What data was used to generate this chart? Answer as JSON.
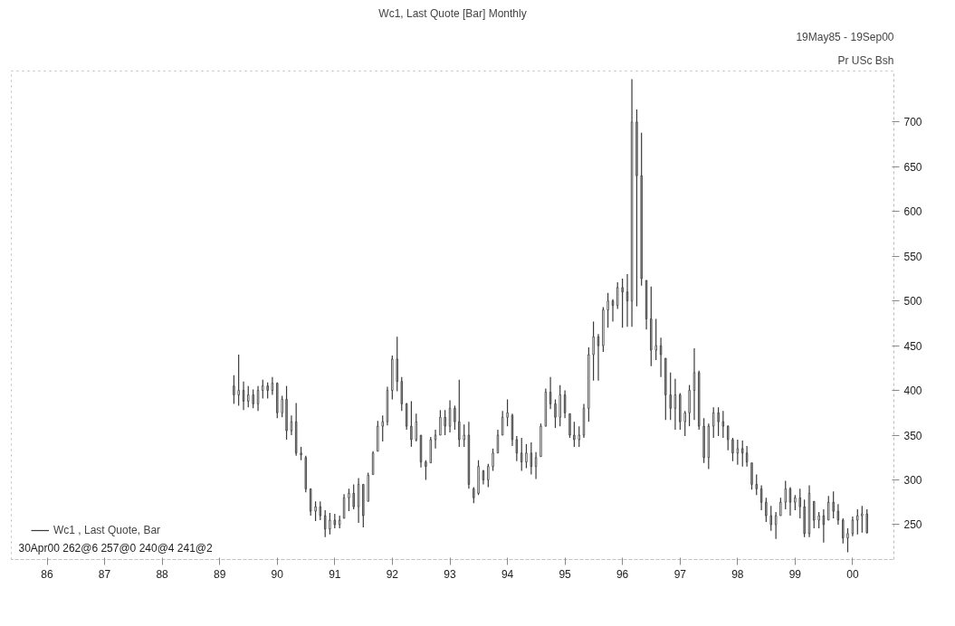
{
  "chart_data": {
    "type": "candlestick",
    "title": "Wc1, Last Quote [Bar] Monthly",
    "subtitle": "19May85 - 19Sep00",
    "ylabel": "Pr USc Bsh",
    "annotations": [
      "30Apr00 262@6 257@0 240@4 241@2"
    ],
    "legend": "bottom left",
    "grid": false,
    "xlim": [
      "1985-05-19",
      "2000-09-19"
    ],
    "xticks": [
      {
        "value": "1986-01",
        "label": "86"
      },
      {
        "value": "1987-01",
        "label": "87"
      },
      {
        "value": "1988-01",
        "label": "88"
      },
      {
        "value": "1989-01",
        "label": "89"
      },
      {
        "value": "1990-01",
        "label": "90"
      },
      {
        "value": "1991-01",
        "label": "91"
      },
      {
        "value": "1992-01",
        "label": "92"
      },
      {
        "value": "1993-01",
        "label": "93"
      },
      {
        "value": "1994-01",
        "label": "94"
      },
      {
        "value": "1995-01",
        "label": "95"
      },
      {
        "value": "1996-01",
        "label": "96"
      },
      {
        "value": "1997-01",
        "label": "97"
      },
      {
        "value": "1998-01",
        "label": "98"
      },
      {
        "value": "1999-01",
        "label": "99"
      },
      {
        "value": "2000-01",
        "label": "00"
      }
    ],
    "ylim": [
      211,
      757
    ],
    "yticks": [
      250,
      300,
      350,
      400,
      450,
      500,
      550,
      600,
      650,
      700
    ],
    "x": [
      "1989-04",
      "1989-05",
      "1989-06",
      "1989-07",
      "1989-08",
      "1989-09",
      "1989-10",
      "1989-11",
      "1989-12",
      "1990-01",
      "1990-02",
      "1990-03",
      "1990-04",
      "1990-05",
      "1990-06",
      "1990-07",
      "1990-08",
      "1990-09",
      "1990-10",
      "1990-11",
      "1990-12",
      "1991-01",
      "1991-02",
      "1991-03",
      "1991-04",
      "1991-05",
      "1991-06",
      "1991-07",
      "1991-08",
      "1991-09",
      "1991-10",
      "1991-11",
      "1991-12",
      "1992-01",
      "1992-02",
      "1992-03",
      "1992-04",
      "1992-05",
      "1992-06",
      "1992-07",
      "1992-08",
      "1992-09",
      "1992-10",
      "1992-11",
      "1992-12",
      "1993-01",
      "1993-02",
      "1993-03",
      "1993-04",
      "1993-05",
      "1993-06",
      "1993-07",
      "1993-08",
      "1993-09",
      "1993-10",
      "1993-11",
      "1993-12",
      "1994-01",
      "1994-02",
      "1994-03",
      "1994-04",
      "1994-05",
      "1994-06",
      "1994-07",
      "1994-08",
      "1994-09",
      "1994-10",
      "1994-11",
      "1994-12",
      "1995-01",
      "1995-02",
      "1995-03",
      "1995-04",
      "1995-05",
      "1995-06",
      "1995-07",
      "1995-08",
      "1995-09",
      "1995-10",
      "1995-11",
      "1995-12",
      "1996-01",
      "1996-02",
      "1996-03",
      "1996-04",
      "1996-05",
      "1996-06",
      "1996-07",
      "1996-08",
      "1996-09",
      "1996-10",
      "1996-11",
      "1996-12",
      "1997-01",
      "1997-02",
      "1997-03",
      "1997-04",
      "1997-05",
      "1997-06",
      "1997-07",
      "1997-08",
      "1997-09",
      "1997-10",
      "1997-11",
      "1997-12",
      "1998-01",
      "1998-02",
      "1998-03",
      "1998-04",
      "1998-05",
      "1998-06",
      "1998-07",
      "1998-08",
      "1998-09",
      "1998-10",
      "1998-11",
      "1998-12",
      "1999-01",
      "1999-02",
      "1999-03",
      "1999-04",
      "1999-05",
      "1999-06",
      "1999-07",
      "1999-08",
      "1999-09",
      "1999-10",
      "1999-11",
      "1999-12",
      "2000-01",
      "2000-02",
      "2000-03",
      "2000-04"
    ],
    "series": [
      {
        "name": "Wc1 , Last Quote, Bar",
        "color": "#3a3a3a",
        "ohlc": [
          [
            405,
            417,
            385,
            395
          ],
          [
            395,
            440,
            383,
            400
          ],
          [
            400,
            410,
            378,
            388
          ],
          [
            388,
            405,
            381,
            395
          ],
          [
            395,
            401,
            380,
            385
          ],
          [
            385,
            405,
            377,
            400
          ],
          [
            400,
            412,
            391,
            405
          ],
          [
            405,
            409,
            391,
            400
          ],
          [
            400,
            415,
            395,
            408
          ],
          [
            408,
            409,
            369,
            375
          ],
          [
            375,
            394,
            370,
            390
          ],
          [
            390,
            405,
            345,
            355
          ],
          [
            355,
            372,
            350,
            365
          ],
          [
            365,
            386,
            327,
            330
          ],
          [
            330,
            337,
            322,
            328
          ],
          [
            325,
            327,
            286,
            290
          ],
          [
            290,
            290,
            260,
            265
          ],
          [
            265,
            276,
            254,
            270
          ],
          [
            270,
            276,
            255,
            260
          ],
          [
            260,
            266,
            236,
            245
          ],
          [
            245,
            263,
            239,
            255
          ],
          [
            255,
            262,
            246,
            250
          ],
          [
            250,
            260,
            246,
            255
          ],
          [
            257,
            284,
            257,
            280
          ],
          [
            280,
            290,
            265,
            285
          ],
          [
            285,
            295,
            267,
            270
          ],
          [
            270,
            302,
            252,
            295
          ],
          [
            295,
            295,
            247,
            260
          ],
          [
            276,
            308,
            276,
            305
          ],
          [
            306,
            332,
            306,
            330
          ],
          [
            332,
            366,
            332,
            360
          ],
          [
            360,
            372,
            343,
            365
          ],
          [
            365,
            404,
            361,
            400
          ],
          [
            400,
            439,
            390,
            435
          ],
          [
            435,
            460,
            399,
            410
          ],
          [
            410,
            415,
            377,
            385
          ],
          [
            385,
            386,
            356,
            360
          ],
          [
            360,
            388,
            337,
            345
          ],
          [
            345,
            374,
            343,
            365
          ],
          [
            350,
            350,
            314,
            320
          ],
          [
            320,
            322,
            300,
            315
          ],
          [
            319,
            348,
            319,
            345
          ],
          [
            345,
            356,
            335,
            350
          ],
          [
            350,
            378,
            350,
            370
          ],
          [
            370,
            378,
            350,
            360
          ],
          [
            360,
            389,
            353,
            380
          ],
          [
            380,
            383,
            356,
            365
          ],
          [
            365,
            412,
            337,
            345
          ],
          [
            345,
            362,
            337,
            350
          ],
          [
            350,
            365,
            290,
            295
          ],
          [
            290,
            292,
            274,
            280
          ],
          [
            285,
            322,
            283,
            315
          ],
          [
            310,
            311,
            295,
            300
          ],
          [
            300,
            318,
            292,
            315
          ],
          [
            315,
            335,
            310,
            330
          ],
          [
            330,
            356,
            330,
            350
          ],
          [
            350,
            377,
            350,
            370
          ],
          [
            370,
            390,
            360,
            375
          ],
          [
            372,
            374,
            338,
            345
          ],
          [
            345,
            349,
            321,
            330
          ],
          [
            330,
            347,
            310,
            320
          ],
          [
            320,
            340,
            313,
            330
          ],
          [
            330,
            342,
            306,
            315
          ],
          [
            315,
            331,
            301,
            325
          ],
          [
            326,
            363,
            326,
            360
          ],
          [
            360,
            402,
            360,
            398
          ],
          [
            398,
            415,
            379,
            385
          ],
          [
            385,
            390,
            358,
            370
          ],
          [
            370,
            406,
            360,
            395
          ],
          [
            395,
            400,
            369,
            375
          ],
          [
            374,
            374,
            347,
            350
          ],
          [
            350,
            365,
            337,
            345
          ],
          [
            345,
            360,
            337,
            350
          ],
          [
            350,
            385,
            347,
            380
          ],
          [
            380,
            448,
            365,
            440
          ],
          [
            440,
            477,
            411,
            460
          ],
          [
            460,
            463,
            411,
            450
          ],
          [
            450,
            493,
            443,
            490
          ],
          [
            490,
            509,
            470,
            500
          ],
          [
            500,
            502,
            477,
            495
          ],
          [
            495,
            521,
            491,
            515
          ],
          [
            515,
            525,
            470,
            510
          ],
          [
            510,
            530,
            471,
            500
          ],
          [
            500,
            748,
            471,
            700
          ],
          [
            700,
            714,
            494,
            640
          ],
          [
            640,
            688,
            517,
            525
          ],
          [
            523,
            523,
            468,
            480
          ],
          [
            480,
            516,
            427,
            445
          ],
          [
            445,
            480,
            434,
            450
          ],
          [
            450,
            459,
            415,
            440
          ],
          [
            436,
            436,
            367,
            395
          ],
          [
            395,
            420,
            367,
            380
          ],
          [
            380,
            413,
            356,
            395
          ],
          [
            395,
            397,
            356,
            365
          ],
          [
            365,
            377,
            349,
            375
          ],
          [
            375,
            406,
            360,
            400
          ],
          [
            400,
            447,
            367,
            420
          ],
          [
            420,
            422,
            356,
            360
          ],
          [
            360,
            369,
            319,
            325
          ],
          [
            325,
            363,
            312,
            360
          ],
          [
            360,
            381,
            347,
            375
          ],
          [
            375,
            381,
            349,
            365
          ],
          [
            365,
            377,
            347,
            360
          ],
          [
            360,
            361,
            333,
            345
          ],
          [
            345,
            347,
            321,
            330
          ],
          [
            330,
            345,
            317,
            335
          ],
          [
            335,
            344,
            315,
            330
          ],
          [
            330,
            338,
            315,
            320
          ],
          [
            319,
            319,
            289,
            295
          ],
          [
            295,
            306,
            283,
            290
          ],
          [
            290,
            294,
            266,
            275
          ],
          [
            275,
            280,
            253,
            260
          ],
          [
            260,
            271,
            243,
            250
          ],
          [
            250,
            264,
            234,
            260
          ],
          [
            260,
            280,
            260,
            275
          ],
          [
            275,
            299,
            267,
            290
          ],
          [
            290,
            292,
            260,
            275
          ],
          [
            275,
            283,
            266,
            280
          ],
          [
            280,
            290,
            257,
            270
          ],
          [
            270,
            278,
            236,
            240
          ],
          [
            240,
            294,
            236,
            285
          ],
          [
            276,
            276,
            246,
            255
          ],
          [
            255,
            264,
            246,
            260
          ],
          [
            260,
            267,
            230,
            250
          ],
          [
            255,
            282,
            255,
            275
          ],
          [
            275,
            287,
            257,
            265
          ],
          [
            265,
            273,
            250,
            255
          ],
          [
            255,
            257,
            229,
            235
          ],
          [
            235,
            246,
            219,
            240
          ],
          [
            240,
            259,
            237,
            255
          ],
          [
            255,
            267,
            239,
            260
          ],
          [
            260,
            271,
            241,
            262
          ],
          [
            262,
            267,
            240,
            241
          ]
        ]
      }
    ]
  }
}
